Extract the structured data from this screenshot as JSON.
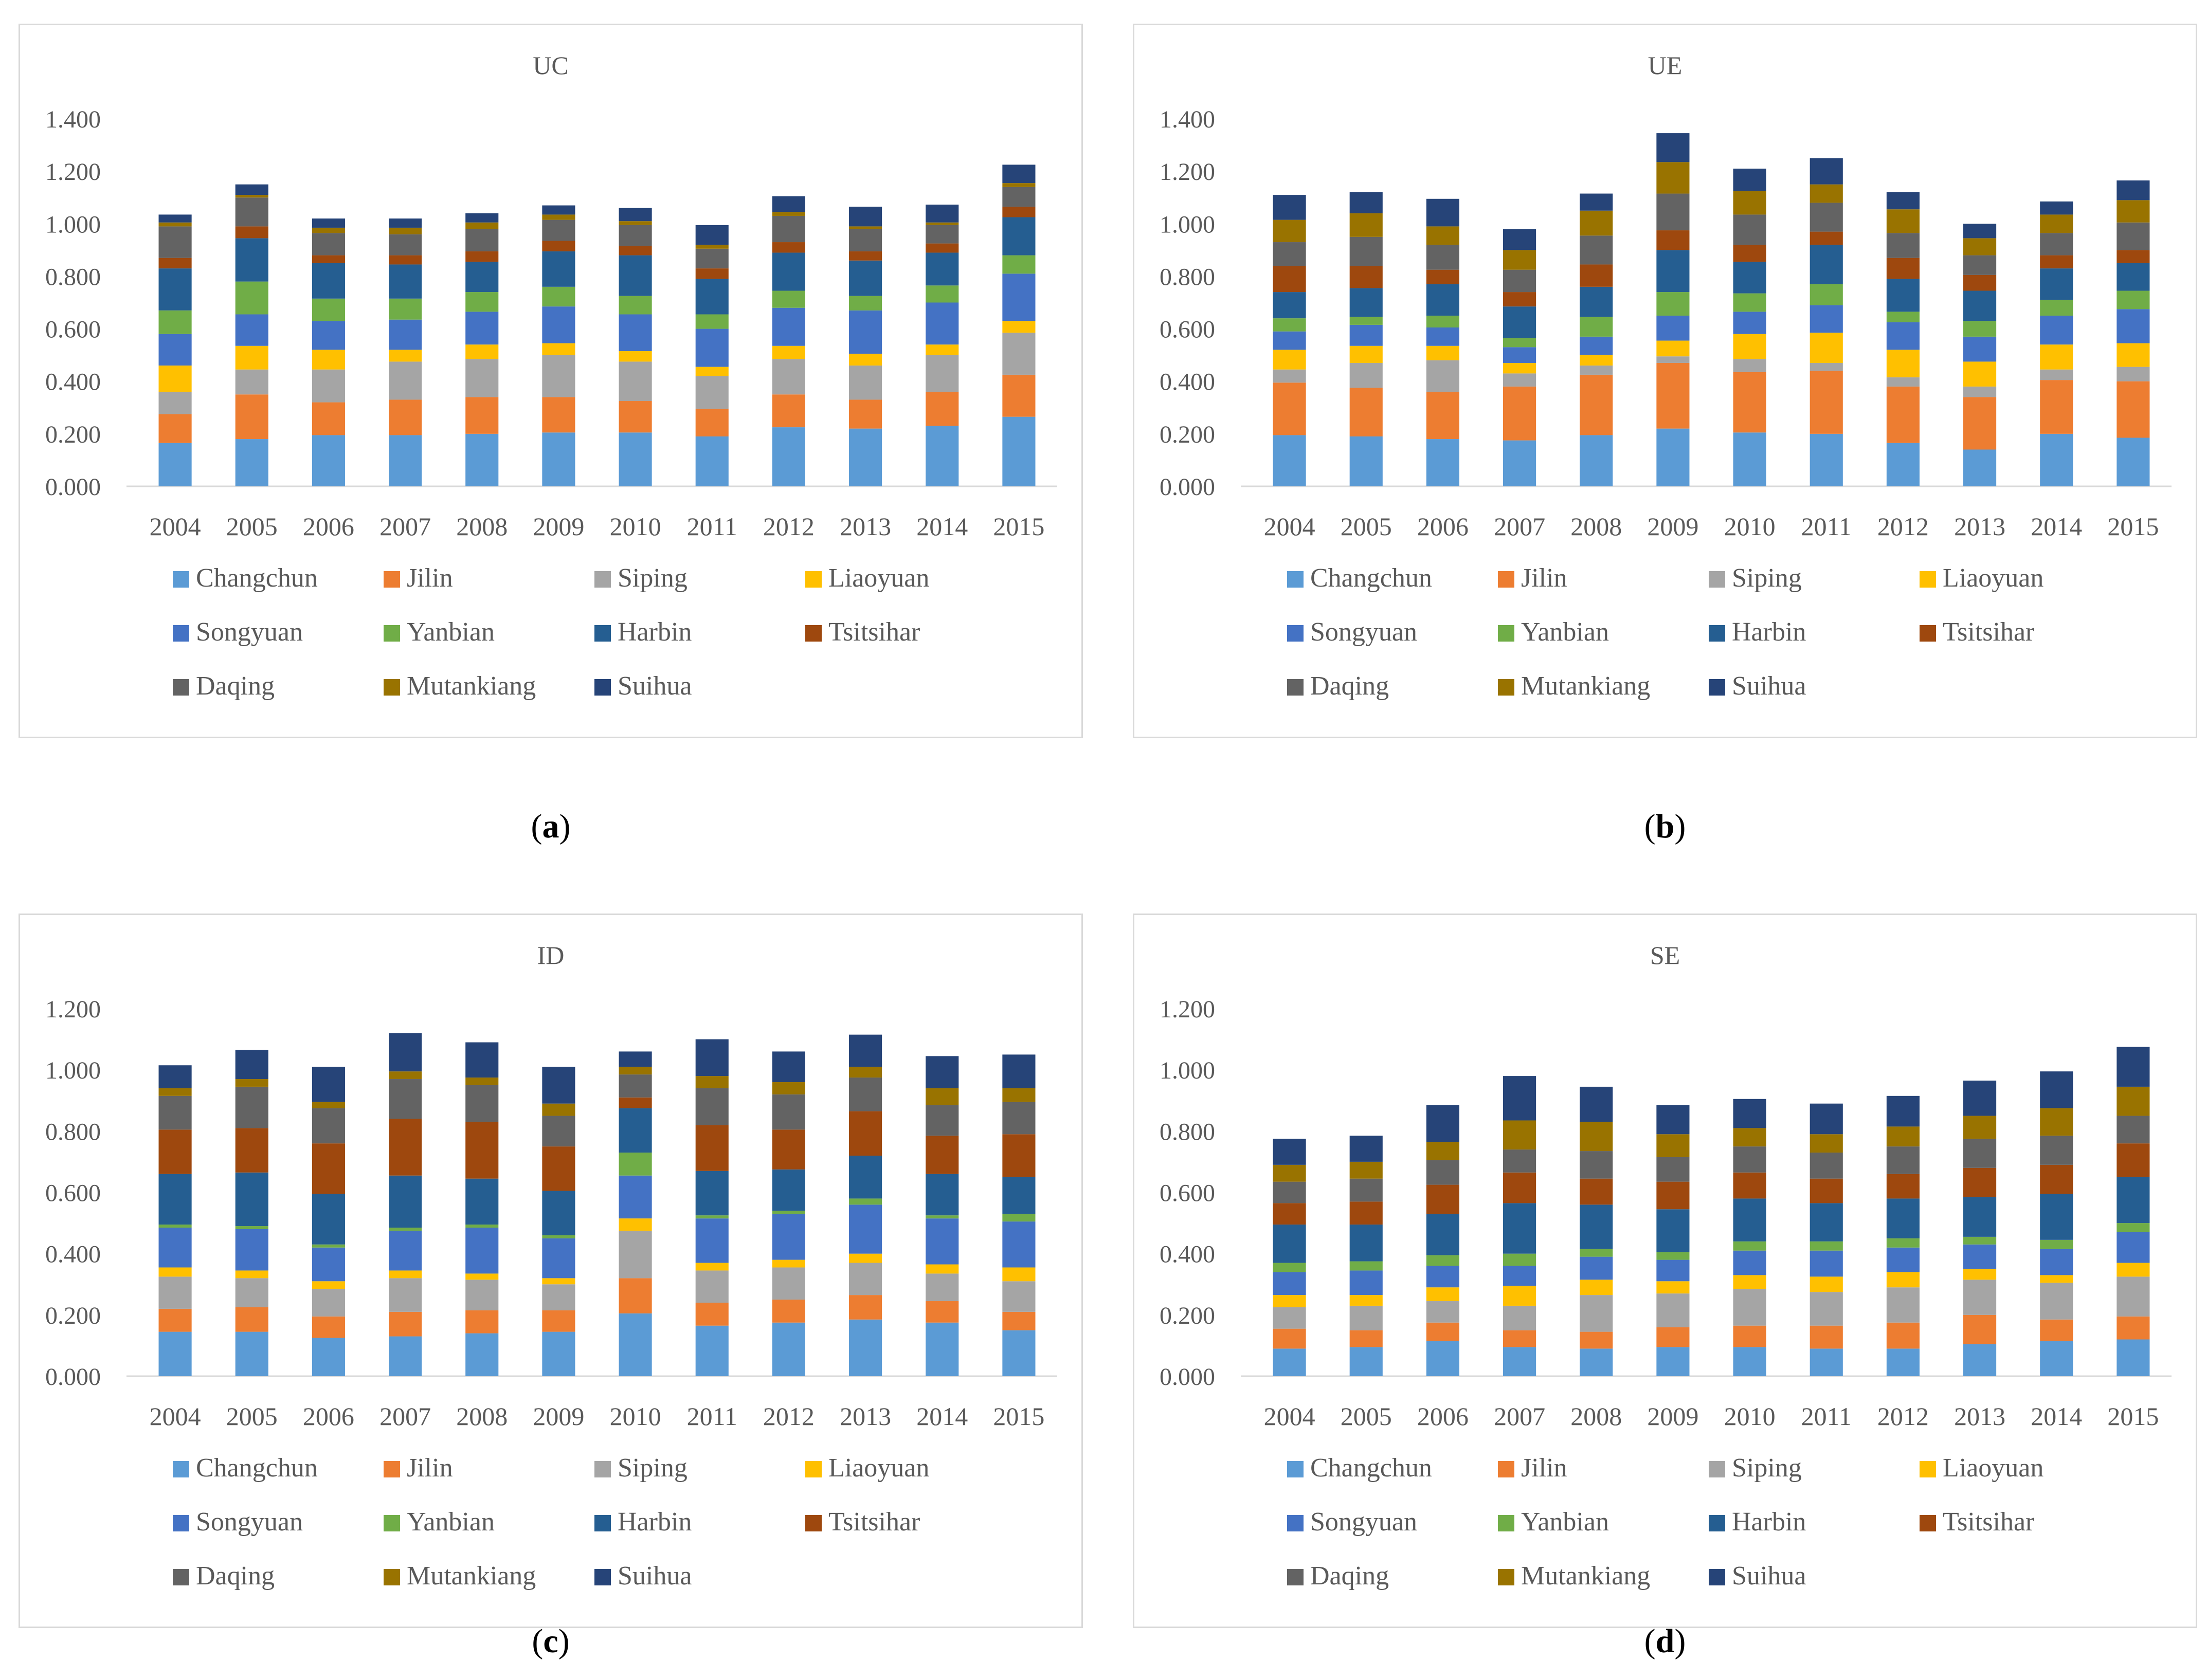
{
  "colors": {
    "Changchun": "#5B9BD5",
    "Jilin": "#ED7D31",
    "Siping": "#A5A5A5",
    "Liaoyuan": "#FFC000",
    "Songyuan": "#4472C4",
    "Yanbian": "#70AD47",
    "Harbin": "#255E91",
    "Tsitsihar": "#9E480E",
    "Daqing": "#636363",
    "Mutankiang": "#997300",
    "Suihua": "#264478"
  },
  "captions": [
    {
      "open": "(",
      "letter": "a",
      "close": ")"
    },
    {
      "open": "(",
      "letter": "b",
      "close": ")"
    },
    {
      "open": "(",
      "letter": "c",
      "close": ")"
    },
    {
      "open": "(",
      "letter": "d",
      "close": ")"
    }
  ],
  "chart_data": [
    {
      "type": "bar",
      "stacked": true,
      "title": "UC",
      "categories": [
        "2004",
        "2005",
        "2006",
        "2007",
        "2008",
        "2009",
        "2010",
        "2011",
        "2012",
        "2013",
        "2014",
        "2015"
      ],
      "ylim": [
        0,
        1.4
      ],
      "yticks": [
        "0.000",
        "0.200",
        "0.400",
        "0.600",
        "0.800",
        "1.000",
        "1.200",
        "1.400"
      ],
      "series": [
        {
          "name": "Changchun",
          "values": [
            0.165,
            0.18,
            0.195,
            0.195,
            0.2,
            0.205,
            0.205,
            0.19,
            0.225,
            0.22,
            0.23,
            0.265
          ]
        },
        {
          "name": "Jilin",
          "values": [
            0.11,
            0.17,
            0.125,
            0.135,
            0.14,
            0.135,
            0.12,
            0.105,
            0.125,
            0.11,
            0.13,
            0.16
          ]
        },
        {
          "name": "Siping",
          "values": [
            0.085,
            0.095,
            0.125,
            0.145,
            0.145,
            0.16,
            0.15,
            0.125,
            0.135,
            0.13,
            0.14,
            0.16
          ]
        },
        {
          "name": "Liaoyuan",
          "values": [
            0.1,
            0.09,
            0.075,
            0.045,
            0.055,
            0.045,
            0.04,
            0.035,
            0.05,
            0.045,
            0.04,
            0.045
          ]
        },
        {
          "name": "Songyuan",
          "values": [
            0.12,
            0.12,
            0.11,
            0.115,
            0.125,
            0.14,
            0.14,
            0.145,
            0.145,
            0.165,
            0.16,
            0.18
          ]
        },
        {
          "name": "Yanbian",
          "values": [
            0.09,
            0.125,
            0.085,
            0.08,
            0.075,
            0.075,
            0.07,
            0.055,
            0.065,
            0.055,
            0.065,
            0.07
          ]
        },
        {
          "name": "Harbin",
          "values": [
            0.16,
            0.165,
            0.135,
            0.13,
            0.115,
            0.135,
            0.155,
            0.135,
            0.145,
            0.135,
            0.125,
            0.145
          ]
        },
        {
          "name": "Tsitsihar",
          "values": [
            0.04,
            0.045,
            0.03,
            0.035,
            0.04,
            0.04,
            0.035,
            0.04,
            0.04,
            0.035,
            0.035,
            0.04
          ]
        },
        {
          "name": "Daqing",
          "values": [
            0.12,
            0.11,
            0.085,
            0.08,
            0.085,
            0.08,
            0.08,
            0.075,
            0.1,
            0.085,
            0.07,
            0.075
          ]
        },
        {
          "name": "Mutankiang",
          "values": [
            0.015,
            0.01,
            0.02,
            0.025,
            0.025,
            0.02,
            0.015,
            0.015,
            0.015,
            0.01,
            0.01,
            0.015
          ]
        },
        {
          "name": "Suihua",
          "values": [
            0.03,
            0.04,
            0.035,
            0.035,
            0.035,
            0.035,
            0.05,
            0.075,
            0.06,
            0.075,
            0.068,
            0.07
          ]
        }
      ]
    },
    {
      "type": "bar",
      "stacked": true,
      "title": "UE",
      "categories": [
        "2004",
        "2005",
        "2006",
        "2007",
        "2008",
        "2009",
        "2010",
        "2011",
        "2012",
        "2013",
        "2014",
        "2015"
      ],
      "ylim": [
        0,
        1.4
      ],
      "yticks": [
        "0.000",
        "0.200",
        "0.400",
        "0.600",
        "0.800",
        "1.000",
        "1.200",
        "1.400"
      ],
      "series": [
        {
          "name": "Changchun",
          "values": [
            0.195,
            0.19,
            0.18,
            0.175,
            0.195,
            0.22,
            0.205,
            0.2,
            0.165,
            0.14,
            0.2,
            0.185
          ]
        },
        {
          "name": "Jilin",
          "values": [
            0.2,
            0.185,
            0.18,
            0.205,
            0.23,
            0.25,
            0.23,
            0.24,
            0.215,
            0.2,
            0.205,
            0.215
          ]
        },
        {
          "name": "Siping",
          "values": [
            0.05,
            0.095,
            0.12,
            0.05,
            0.035,
            0.025,
            0.05,
            0.03,
            0.035,
            0.04,
            0.04,
            0.055
          ]
        },
        {
          "name": "Liaoyuan",
          "values": [
            0.075,
            0.065,
            0.055,
            0.04,
            0.04,
            0.06,
            0.095,
            0.115,
            0.105,
            0.095,
            0.095,
            0.09
          ]
        },
        {
          "name": "Songyuan",
          "values": [
            0.07,
            0.08,
            0.07,
            0.06,
            0.07,
            0.095,
            0.085,
            0.105,
            0.105,
            0.095,
            0.11,
            0.13
          ]
        },
        {
          "name": "Yanbian",
          "values": [
            0.05,
            0.03,
            0.045,
            0.035,
            0.075,
            0.09,
            0.07,
            0.08,
            0.04,
            0.06,
            0.06,
            0.07
          ]
        },
        {
          "name": "Harbin",
          "values": [
            0.1,
            0.11,
            0.12,
            0.12,
            0.115,
            0.16,
            0.12,
            0.15,
            0.125,
            0.115,
            0.12,
            0.105
          ]
        },
        {
          "name": "Tsitsihar",
          "values": [
            0.1,
            0.085,
            0.055,
            0.055,
            0.085,
            0.075,
            0.065,
            0.05,
            0.08,
            0.06,
            0.05,
            0.05
          ]
        },
        {
          "name": "Daqing",
          "values": [
            0.09,
            0.11,
            0.095,
            0.085,
            0.11,
            0.14,
            0.115,
            0.11,
            0.095,
            0.075,
            0.085,
            0.105
          ]
        },
        {
          "name": "Mutankiang",
          "values": [
            0.085,
            0.09,
            0.07,
            0.075,
            0.095,
            0.12,
            0.09,
            0.07,
            0.09,
            0.065,
            0.07,
            0.085
          ]
        },
        {
          "name": "Suihua",
          "values": [
            0.095,
            0.08,
            0.105,
            0.08,
            0.065,
            0.11,
            0.085,
            0.1,
            0.065,
            0.055,
            0.05,
            0.075
          ]
        }
      ]
    },
    {
      "type": "bar",
      "stacked": true,
      "title": "ID",
      "categories": [
        "2004",
        "2005",
        "2006",
        "2007",
        "2008",
        "2009",
        "2010",
        "2011",
        "2012",
        "2013",
        "2014",
        "2015"
      ],
      "ylim": [
        0,
        1.2
      ],
      "yticks": [
        "0.000",
        "0.200",
        "0.400",
        "0.600",
        "0.800",
        "1.000",
        "1.200"
      ],
      "series": [
        {
          "name": "Changchun",
          "values": [
            0.145,
            0.145,
            0.125,
            0.13,
            0.14,
            0.145,
            0.205,
            0.165,
            0.175,
            0.185,
            0.175,
            0.15
          ]
        },
        {
          "name": "Jilin",
          "values": [
            0.075,
            0.08,
            0.07,
            0.08,
            0.075,
            0.07,
            0.115,
            0.075,
            0.075,
            0.08,
            0.07,
            0.06
          ]
        },
        {
          "name": "Siping",
          "values": [
            0.105,
            0.095,
            0.09,
            0.11,
            0.1,
            0.085,
            0.155,
            0.105,
            0.105,
            0.105,
            0.09,
            0.1
          ]
        },
        {
          "name": "Liaoyuan",
          "values": [
            0.03,
            0.025,
            0.025,
            0.025,
            0.02,
            0.02,
            0.04,
            0.025,
            0.025,
            0.03,
            0.03,
            0.045
          ]
        },
        {
          "name": "Songyuan",
          "values": [
            0.13,
            0.135,
            0.11,
            0.13,
            0.15,
            0.13,
            0.14,
            0.145,
            0.15,
            0.16,
            0.15,
            0.15
          ]
        },
        {
          "name": "Yanbian",
          "values": [
            0.01,
            0.01,
            0.01,
            0.01,
            0.01,
            0.01,
            0.075,
            0.01,
            0.01,
            0.02,
            0.01,
            0.025
          ]
        },
        {
          "name": "Harbin",
          "values": [
            0.165,
            0.175,
            0.165,
            0.17,
            0.15,
            0.145,
            0.145,
            0.145,
            0.135,
            0.14,
            0.135,
            0.12
          ]
        },
        {
          "name": "Tsitsihar",
          "values": [
            0.145,
            0.145,
            0.165,
            0.185,
            0.185,
            0.145,
            0.035,
            0.15,
            0.13,
            0.145,
            0.125,
            0.14
          ]
        },
        {
          "name": "Daqing",
          "values": [
            0.11,
            0.135,
            0.115,
            0.13,
            0.12,
            0.1,
            0.075,
            0.12,
            0.115,
            0.11,
            0.1,
            0.105
          ]
        },
        {
          "name": "Mutankiang",
          "values": [
            0.025,
            0.025,
            0.02,
            0.025,
            0.025,
            0.04,
            0.025,
            0.04,
            0.04,
            0.035,
            0.055,
            0.045
          ]
        },
        {
          "name": "Suihua",
          "values": [
            0.075,
            0.095,
            0.115,
            0.125,
            0.115,
            0.12,
            0.05,
            0.12,
            0.1,
            0.105,
            0.105,
            0.11
          ]
        }
      ]
    },
    {
      "type": "bar",
      "stacked": true,
      "title": "SE",
      "categories": [
        "2004",
        "2005",
        "2006",
        "2007",
        "2008",
        "2009",
        "2010",
        "2011",
        "2012",
        "2013",
        "2014",
        "2015"
      ],
      "ylim": [
        0,
        1.2
      ],
      "yticks": [
        "0.000",
        "0.200",
        "0.400",
        "0.600",
        "0.800",
        "1.000",
        "1.200"
      ],
      "series": [
        {
          "name": "Changchun",
          "values": [
            0.09,
            0.095,
            0.115,
            0.095,
            0.09,
            0.095,
            0.095,
            0.09,
            0.09,
            0.105,
            0.115,
            0.12
          ]
        },
        {
          "name": "Jilin",
          "values": [
            0.065,
            0.055,
            0.06,
            0.055,
            0.055,
            0.065,
            0.07,
            0.075,
            0.085,
            0.095,
            0.07,
            0.075
          ]
        },
        {
          "name": "Siping",
          "values": [
            0.07,
            0.08,
            0.07,
            0.08,
            0.12,
            0.11,
            0.12,
            0.11,
            0.115,
            0.115,
            0.12,
            0.13
          ]
        },
        {
          "name": "Liaoyuan",
          "values": [
            0.04,
            0.035,
            0.045,
            0.065,
            0.05,
            0.04,
            0.045,
            0.05,
            0.05,
            0.035,
            0.025,
            0.045
          ]
        },
        {
          "name": "Songyuan",
          "values": [
            0.075,
            0.08,
            0.07,
            0.065,
            0.075,
            0.07,
            0.08,
            0.085,
            0.08,
            0.08,
            0.085,
            0.1
          ]
        },
        {
          "name": "Yanbian",
          "values": [
            0.03,
            0.03,
            0.035,
            0.04,
            0.025,
            0.025,
            0.03,
            0.03,
            0.03,
            0.025,
            0.03,
            0.03
          ]
        },
        {
          "name": "Harbin",
          "values": [
            0.125,
            0.12,
            0.135,
            0.165,
            0.145,
            0.14,
            0.14,
            0.125,
            0.13,
            0.13,
            0.15,
            0.15
          ]
        },
        {
          "name": "Tsitsihar",
          "values": [
            0.07,
            0.075,
            0.095,
            0.1,
            0.085,
            0.09,
            0.085,
            0.08,
            0.08,
            0.095,
            0.095,
            0.11
          ]
        },
        {
          "name": "Daqing",
          "values": [
            0.07,
            0.075,
            0.08,
            0.075,
            0.09,
            0.08,
            0.085,
            0.085,
            0.09,
            0.095,
            0.095,
            0.09
          ]
        },
        {
          "name": "Mutankiang",
          "values": [
            0.055,
            0.055,
            0.06,
            0.095,
            0.095,
            0.075,
            0.06,
            0.06,
            0.065,
            0.075,
            0.09,
            0.095
          ]
        },
        {
          "name": "Suihua",
          "values": [
            0.085,
            0.085,
            0.12,
            0.145,
            0.115,
            0.095,
            0.095,
            0.1,
            0.1,
            0.115,
            0.12,
            0.13
          ]
        }
      ]
    }
  ]
}
